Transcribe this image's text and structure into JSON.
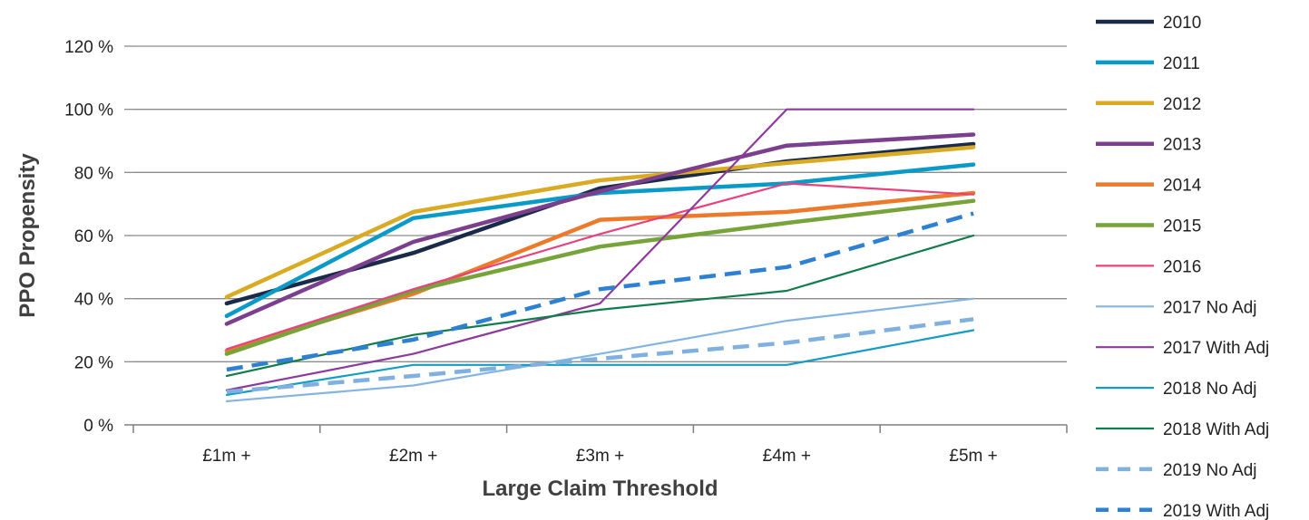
{
  "chart_data": {
    "type": "line",
    "title": "",
    "xlabel": "Large Claim Threshold",
    "ylabel": "PPO Propensity",
    "categories": [
      "£1m +",
      "£2m +",
      "£3m +",
      "£4m +",
      "£5m +"
    ],
    "ylim": [
      0,
      120
    ],
    "yticks": [
      0,
      20,
      40,
      60,
      80,
      100,
      120
    ],
    "ytick_labels": [
      "0 %",
      "20 %",
      "40 %",
      "60 %",
      "80 %",
      "100 %",
      "120 %"
    ],
    "grid": "horizontal",
    "legend_position": "right",
    "series": [
      {
        "name": "2010",
        "values": [
          38.5,
          54.5,
          75,
          83.5,
          89
        ],
        "color": "#1a2b4a",
        "style": "solid",
        "weight": "thick"
      },
      {
        "name": "2011",
        "values": [
          34.5,
          65.5,
          73.5,
          76.5,
          82.5
        ],
        "color": "#0a9ac8",
        "style": "solid",
        "weight": "thick"
      },
      {
        "name": "2012",
        "values": [
          40.5,
          67.5,
          77.5,
          83,
          88
        ],
        "color": "#d9aa22",
        "style": "solid",
        "weight": "thick"
      },
      {
        "name": "2013",
        "values": [
          32,
          58,
          74,
          88.5,
          92
        ],
        "color": "#7b3f8e",
        "style": "solid",
        "weight": "thick"
      },
      {
        "name": "2014",
        "values": [
          23.5,
          41.5,
          65,
          67.5,
          73.5
        ],
        "color": "#ec7a2a",
        "style": "solid",
        "weight": "thick"
      },
      {
        "name": "2015",
        "values": [
          22.5,
          42.5,
          56.5,
          64,
          71
        ],
        "color": "#76a33a",
        "style": "solid",
        "weight": "thick"
      },
      {
        "name": "2016",
        "values": [
          24,
          43,
          60.5,
          76.5,
          73
        ],
        "color": "#e8427e",
        "style": "solid",
        "weight": "thin"
      },
      {
        "name": "2017 No Adj",
        "values": [
          7.5,
          12.5,
          22.5,
          33,
          40
        ],
        "color": "#84b4e2",
        "style": "solid",
        "weight": "thin"
      },
      {
        "name": "2017 With Adj",
        "values": [
          11,
          22.5,
          38.5,
          100,
          100
        ],
        "color": "#8e3a9c",
        "style": "solid",
        "weight": "thin"
      },
      {
        "name": "2018 No Adj",
        "values": [
          9.5,
          19,
          19,
          19,
          30
        ],
        "color": "#139cc4",
        "style": "solid",
        "weight": "thin"
      },
      {
        "name": "2018 With Adj",
        "values": [
          15.5,
          28.5,
          36.5,
          42.5,
          60
        ],
        "color": "#117d4b",
        "style": "solid",
        "weight": "thin"
      },
      {
        "name": "2019 No Adj",
        "values": [
          10.5,
          15.5,
          21,
          26,
          33.5
        ],
        "color": "#7fb0e0",
        "style": "dashed",
        "weight": "thick"
      },
      {
        "name": "2019 With Adj",
        "values": [
          17.5,
          27,
          43,
          50,
          67
        ],
        "color": "#2d80d2",
        "style": "dashed",
        "weight": "thick"
      }
    ]
  }
}
